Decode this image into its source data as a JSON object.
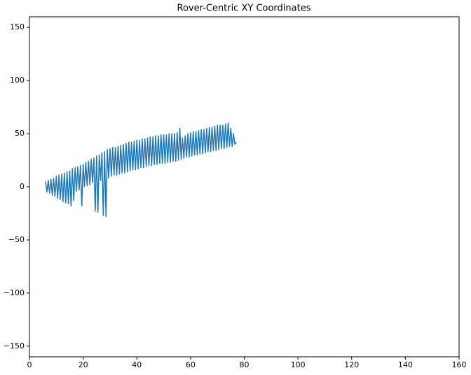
{
  "chart_data": {
    "type": "line",
    "title": "Rover-Centric XY Coordinates",
    "x": [
      6,
      6.5,
      7,
      7.5,
      8,
      8.5,
      9,
      9.5,
      10,
      10.5,
      11,
      11.5,
      12,
      12.5,
      13,
      13.5,
      14,
      14.5,
      15,
      15.5,
      16,
      16.5,
      17,
      17.5,
      18,
      18.5,
      19,
      19.5,
      20,
      20.5,
      21,
      21.5,
      22,
      22.5,
      23,
      23.5,
      24,
      24.5,
      25,
      25.5,
      26,
      26.5,
      27,
      27.5,
      28,
      28.5,
      29,
      29.5,
      30,
      30.5,
      31,
      31.5,
      32,
      32.5,
      33,
      33.5,
      34,
      34.5,
      35,
      35.5,
      36,
      36.5,
      37,
      37.5,
      38,
      38.5,
      39,
      39.5,
      40,
      40.5,
      41,
      41.5,
      42,
      42.5,
      43,
      43.5,
      44,
      44.5,
      45,
      45.5,
      46,
      46.5,
      47,
      47.5,
      48,
      48.5,
      49,
      49.5,
      50,
      50.5,
      51,
      51.5,
      52,
      52.5,
      53,
      53.5,
      54,
      54.5,
      55,
      55.5,
      56,
      56.5,
      57,
      57.5,
      58,
      58.5,
      59,
      59.5,
      60,
      60.5,
      61,
      61.5,
      62,
      62.5,
      63,
      63.5,
      64,
      64.5,
      65,
      65.5,
      66,
      66.5,
      67,
      67.5,
      68,
      68.5,
      69,
      69.5,
      70,
      70.5,
      71,
      71.5,
      72,
      72.5,
      73,
      73.5,
      74,
      74.5,
      75,
      75.5,
      76,
      76.5,
      77
    ],
    "series": [
      {
        "color": "#1f77b4",
        "values": [
          5,
          -5,
          6,
          -6,
          7,
          -8,
          8,
          -9,
          10,
          -11,
          11,
          -12,
          12,
          -14,
          13,
          -15,
          14,
          -16,
          15,
          -18,
          17,
          -13,
          18,
          -4,
          19,
          -3,
          20,
          -18,
          21,
          0,
          23,
          1,
          24,
          2,
          26,
          4,
          27,
          -23,
          29,
          -24,
          30,
          6,
          32,
          -27,
          33,
          -28,
          35,
          8,
          36,
          10,
          37,
          11,
          37,
          11,
          38,
          12,
          39,
          13,
          40,
          13,
          41,
          14,
          42,
          15,
          42,
          16,
          43,
          16,
          44,
          17,
          44,
          18,
          45,
          18,
          45,
          19,
          46,
          20,
          47,
          20,
          47,
          21,
          48,
          21,
          48,
          22,
          49,
          22,
          49,
          22,
          49,
          23,
          50,
          23,
          50,
          24,
          50,
          24,
          51,
          25,
          55,
          26,
          46,
          27,
          48,
          28,
          50,
          28,
          51,
          29,
          52,
          30,
          52,
          30,
          53,
          31,
          54,
          31,
          54,
          32,
          55,
          33,
          56,
          33,
          56,
          34,
          57,
          34,
          58,
          35,
          58,
          36,
          58,
          36,
          59,
          37,
          60,
          38,
          55,
          38,
          50,
          40,
          42
        ]
      }
    ],
    "xlim": [
      0,
      160
    ],
    "ylim": [
      -160,
      160
    ],
    "xticks": [
      0,
      20,
      40,
      60,
      80,
      100,
      120,
      140,
      160
    ],
    "yticks": [
      {
        "value": -150,
        "label": "−150"
      },
      {
        "value": -100,
        "label": "−100"
      },
      {
        "value": -50,
        "label": "−50"
      },
      0,
      50,
      100,
      150
    ]
  }
}
